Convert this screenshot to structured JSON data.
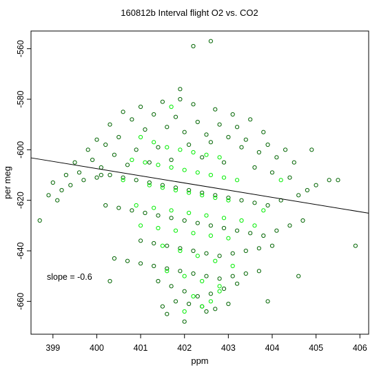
{
  "chart_data": {
    "type": "scatter",
    "title": "160812b   Interval flight O2 vs. CO2",
    "xlabel": "ppm",
    "ylabel": "per meg",
    "xlim": [
      398.5,
      406.2
    ],
    "ylim": [
      -673,
      -553
    ],
    "xticks": [
      399,
      400,
      401,
      402,
      403,
      404,
      405,
      406
    ],
    "yticks": [
      -660,
      -640,
      -620,
      -600,
      -580,
      -560
    ],
    "xtick_labels": [
      "399",
      "400",
      "401",
      "402",
      "403",
      "404",
      "405",
      "406"
    ],
    "ytick_labels": [
      "-660",
      "-640",
      "-620",
      "-600",
      "-580",
      "-560"
    ],
    "annotation": "slope =  -0.6",
    "fit_line": {
      "slope": -0.6,
      "x": [
        398.5,
        406.2
      ],
      "y": [
        -603.2,
        -625.1
      ]
    },
    "grid": false,
    "legend": "none",
    "colors": {
      "dark": "#006400",
      "bright": "#00ee00"
    },
    "series": [
      {
        "color": "dark",
        "x": [
          400.6,
          401.0,
          401.5,
          401.9,
          402.2,
          402.7,
          403.1,
          403.5,
          400.3,
          400.8,
          401.3,
          401.8,
          402.3,
          402.8,
          403.2,
          403.8,
          400.0,
          399.8,
          400.2,
          400.5,
          401.1,
          401.6,
          402.0,
          402.5,
          403.0,
          403.4,
          403.9,
          404.3,
          399.5,
          399.9,
          400.4,
          400.9,
          401.4,
          402.1,
          402.6,
          403.3,
          403.7,
          404.1,
          404.5,
          399.3,
          399.6,
          400.1,
          400.7,
          401.2,
          401.7,
          402.4,
          402.9,
          403.6,
          404.0,
          404.4,
          399.0,
          398.9,
          399.2,
          399.4,
          399.7,
          400.0,
          400.3,
          400.6,
          400.9,
          401.2,
          401.5,
          401.8,
          402.1,
          402.4,
          402.7,
          403.0,
          403.3,
          403.6,
          403.9,
          404.2,
          404.6,
          404.8,
          405.0,
          405.3,
          400.2,
          400.5,
          400.8,
          401.1,
          401.4,
          401.7,
          402.0,
          402.3,
          402.6,
          402.9,
          403.2,
          403.5,
          403.8,
          404.1,
          404.4,
          404.7,
          401.0,
          401.3,
          401.6,
          401.9,
          402.2,
          402.5,
          402.8,
          403.1,
          403.4,
          403.7,
          404.0,
          400.4,
          400.7,
          401.0,
          401.3,
          401.6,
          401.9,
          402.2,
          402.5,
          402.8,
          403.1,
          403.4,
          403.7,
          401.4,
          401.7,
          402.0,
          402.3,
          402.6,
          402.9,
          403.2,
          401.8,
          402.1,
          402.4,
          402.7,
          403.0,
          402.0,
          401.5,
          402.5,
          402.2,
          401.9,
          399.1,
          400.1,
          404.9,
          405.5,
          405.9,
          398.7,
          400.3,
          403.9,
          404.6,
          401.6,
          402.6
        ],
        "y": [
          -585,
          -583,
          -581,
          -580,
          -582,
          -584,
          -586,
          -588,
          -590,
          -588,
          -586,
          -587,
          -589,
          -590,
          -591,
          -593,
          -596,
          -600,
          -598,
          -595,
          -592,
          -591,
          -593,
          -594,
          -595,
          -596,
          -598,
          -600,
          -605,
          -604,
          -602,
          -600,
          -599,
          -598,
          -597,
          -599,
          -601,
          -603,
          -605,
          -610,
          -609,
          -607,
          -606,
          -605,
          -604,
          -603,
          -605,
          -607,
          -609,
          -611,
          -613,
          -618,
          -616,
          -614,
          -612,
          -611,
          -610,
          -611,
          -612,
          -613,
          -614,
          -615,
          -616,
          -617,
          -618,
          -619,
          -620,
          -621,
          -622,
          -620,
          -618,
          -616,
          -614,
          -612,
          -622,
          -623,
          -624,
          -625,
          -626,
          -627,
          -628,
          -629,
          -630,
          -631,
          -632,
          -633,
          -634,
          -632,
          -630,
          -628,
          -636,
          -637,
          -638,
          -639,
          -640,
          -641,
          -642,
          -641,
          -640,
          -639,
          -638,
          -643,
          -644,
          -645,
          -646,
          -647,
          -648,
          -649,
          -650,
          -651,
          -650,
          -649,
          -648,
          -652,
          -654,
          -656,
          -658,
          -657,
          -655,
          -653,
          -660,
          -661,
          -662,
          -663,
          -661,
          -668,
          -662,
          -664,
          -559,
          -576,
          -620,
          -610,
          -600,
          -612,
          -638,
          -628,
          -652,
          -660,
          -650,
          -665,
          -557
        ]
      },
      {
        "color": "bright",
        "x": [
          401.0,
          401.3,
          401.6,
          401.9,
          402.2,
          402.5,
          402.8,
          401.1,
          401.4,
          401.7,
          402.0,
          402.3,
          402.6,
          402.9,
          403.2,
          401.2,
          401.5,
          401.8,
          402.1,
          402.4,
          402.7,
          403.0,
          400.9,
          401.3,
          401.7,
          402.1,
          402.5,
          402.9,
          403.3,
          401.0,
          401.4,
          401.8,
          402.2,
          402.6,
          403.0,
          401.5,
          401.9,
          402.3,
          402.7,
          403.1,
          401.6,
          402.0,
          402.4,
          402.8,
          402.2,
          402.6,
          400.6,
          400.8,
          403.6,
          403.8,
          404.2,
          402.0,
          402.4,
          402.8,
          401.7
        ],
        "y": [
          -595,
          -597,
          -599,
          -600,
          -601,
          -602,
          -603,
          -605,
          -606,
          -607,
          -608,
          -609,
          -610,
          -611,
          -612,
          -614,
          -615,
          -616,
          -617,
          -618,
          -619,
          -620,
          -622,
          -623,
          -624,
          -625,
          -626,
          -627,
          -628,
          -630,
          -631,
          -632,
          -633,
          -634,
          -635,
          -638,
          -640,
          -642,
          -644,
          -646,
          -648,
          -650,
          -652,
          -654,
          -658,
          -660,
          -612,
          -604,
          -630,
          -624,
          -612,
          -664,
          -662,
          -656,
          -583
        ]
      }
    ]
  }
}
